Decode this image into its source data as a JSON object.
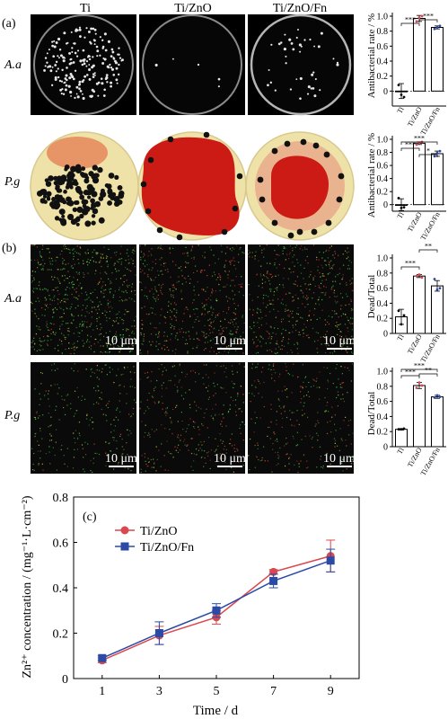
{
  "panel_labels": {
    "a": "(a)",
    "b": "(b)",
    "c": "(c)"
  },
  "columns": [
    "Ti",
    "Ti/ZnO",
    "Ti/ZnO/Fn"
  ],
  "rows": {
    "aa": "A.a",
    "pg": "P.g"
  },
  "scale_bar": "10 μm",
  "colors": {
    "ti_zno": "#d9474f",
    "ti_zno_fn": "#2a4aa5",
    "pg_plate": "#efe2a8",
    "pg_red": "#cc1a14",
    "dot_green": "#3fbf3f",
    "dot_red": "#e0433a"
  },
  "chart_data": [
    {
      "type": "bar",
      "panel": "(a) A.a",
      "categories": [
        "Ti",
        "Ti/ZnO",
        "Ti/ZnO/Fn"
      ],
      "values": [
        0.0,
        0.97,
        0.85
      ],
      "points": [
        [
          0.08,
          -0.05,
          -0.08
        ],
        [
          0.93,
          0.98,
          1.0
        ],
        [
          0.83,
          0.85,
          0.87
        ]
      ],
      "errors": [
        0.1,
        0.04,
        0.02
      ],
      "ylabel": "Antibacterial rate / %",
      "ylim": [
        -0.2,
        1.0
      ],
      "yticks": [
        "0",
        "0.2",
        "0.4",
        "0.6",
        "0.8",
        "1.0"
      ],
      "sig": [
        "***",
        "***"
      ]
    },
    {
      "type": "bar",
      "panel": "(a) P.g",
      "categories": [
        "Ti",
        "Ti/ZnO",
        "Ti/ZnO/Fn"
      ],
      "values": [
        0.0,
        0.94,
        0.78
      ],
      "points": [
        [
          0.1,
          -0.05,
          -0.04
        ],
        [
          0.92,
          0.95,
          0.96
        ],
        [
          0.74,
          0.79,
          0.82
        ]
      ],
      "errors": [
        0.09,
        0.02,
        0.04
      ],
      "ylabel": "Antibacterial rate / %",
      "ylim": [
        -0.1,
        1.0
      ],
      "yticks": [
        "0",
        "0.2",
        "0.4",
        "0.6",
        "0.8",
        "1.0"
      ],
      "sig": [
        "***",
        "***",
        "*"
      ]
    },
    {
      "type": "bar",
      "panel": "(b) A.a",
      "categories": [
        "Ti",
        "Ti/ZnO",
        "Ti/ZnO/Fn"
      ],
      "values": [
        0.22,
        0.76,
        0.63
      ],
      "points": [
        [
          0.3,
          0.12,
          0.24
        ],
        [
          0.76,
          0.78,
          0.74
        ],
        [
          0.72,
          0.58,
          0.6
        ]
      ],
      "errors": [
        0.1,
        0.02,
        0.07
      ],
      "ylabel": "Dead/Total",
      "ylim": [
        0,
        1.0
      ],
      "yticks": [
        "0",
        "0.2",
        "0.4",
        "0.6",
        "0.8",
        "1.0"
      ],
      "sig": [
        "***",
        "**"
      ]
    },
    {
      "type": "bar",
      "panel": "(b) P.g",
      "categories": [
        "Ti",
        "Ti/ZnO",
        "Ti/ZnO/Fn"
      ],
      "values": [
        0.23,
        0.81,
        0.66
      ],
      "points": [
        [
          0.23,
          0.23,
          0.24
        ],
        [
          0.78,
          0.85,
          0.81
        ],
        [
          0.65,
          0.68,
          0.66
        ]
      ],
      "errors": [
        0.01,
        0.04,
        0.02
      ],
      "ylabel": "Dead/Total",
      "ylim": [
        0,
        1.0
      ],
      "yticks": [
        "0",
        "0.2",
        "0.4",
        "0.6",
        "0.8",
        "1.0"
      ],
      "sig": [
        "***",
        "***",
        "**"
      ]
    },
    {
      "type": "line",
      "panel": "(c)",
      "x": [
        1,
        3,
        5,
        7,
        9
      ],
      "series": [
        {
          "name": "Ti/ZnO",
          "values": [
            0.08,
            0.19,
            0.27,
            0.47,
            0.54
          ],
          "errors": [
            0.01,
            0.04,
            0.03,
            0.01,
            0.07
          ]
        },
        {
          "name": "Ti/ZnO/Fn",
          "values": [
            0.09,
            0.2,
            0.3,
            0.43,
            0.52
          ],
          "errors": [
            0.01,
            0.05,
            0.03,
            0.03,
            0.05
          ]
        }
      ],
      "xlabel": "Time / d",
      "ylabel": "Zn²⁺ concentration / (mg⁻¹·L·cm⁻²)",
      "xticks": [
        "1",
        "3",
        "5",
        "7",
        "9"
      ],
      "yticks": [
        "0",
        "0.2",
        "0.4",
        "0.6",
        "0.8"
      ],
      "xlim": [
        0,
        10
      ],
      "ylim": [
        0,
        0.8
      ],
      "legend": "top-left"
    }
  ]
}
